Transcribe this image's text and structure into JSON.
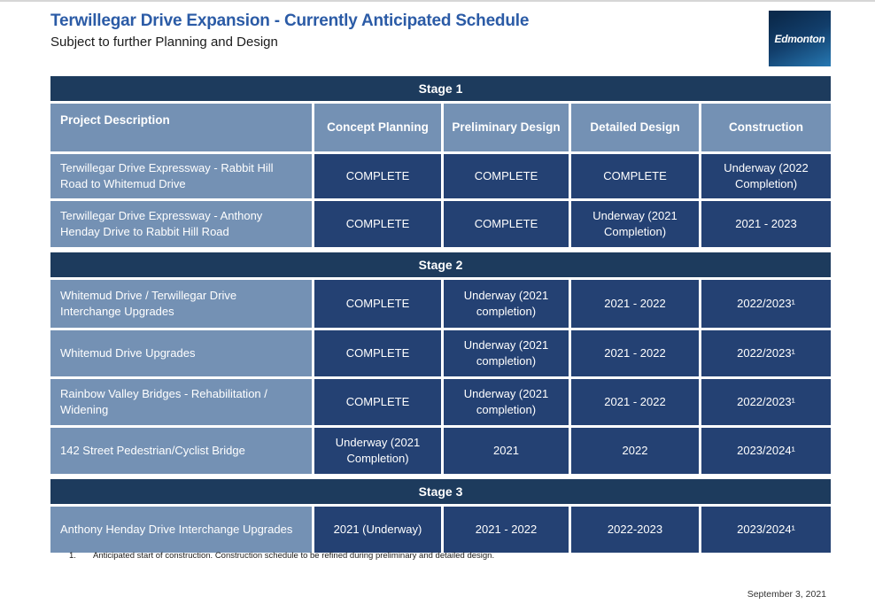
{
  "header": {
    "title": "Terwillegar Drive Expansion - Currently Anticipated Schedule",
    "subtitle": "Subject to further Planning and Design",
    "logo_text": "Edmonton"
  },
  "colors": {
    "title_blue": "#2b5ba6",
    "stage_bar": "#1d3b5d",
    "column_header": "#7491b4",
    "data_cell": "#244173",
    "logo_gradient_start": "#0b2a4c",
    "logo_gradient_end": "#2678b2"
  },
  "table": {
    "columns": [
      "Project Description",
      "Concept Planning",
      "Preliminary Design",
      "Detailed Design",
      "Construction"
    ],
    "stages": [
      {
        "label": "Stage 1",
        "rows": [
          {
            "desc": "Terwillegar Drive Expressway - Rabbit Hill Road to Whitemud Drive",
            "cells": [
              "COMPLETE",
              "COMPLETE",
              "COMPLETE",
              "Underway (2022 Completion)"
            ]
          },
          {
            "desc": "Terwillegar Drive Expressway - Anthony Henday Drive to Rabbit Hill Road",
            "cells": [
              "COMPLETE",
              "COMPLETE",
              "Underway (2021 Completion)",
              "2021 - 2023"
            ]
          }
        ]
      },
      {
        "label": "Stage 2",
        "rows": [
          {
            "desc": "Whitemud Drive / Terwillegar Drive Interchange Upgrades",
            "cells": [
              "COMPLETE",
              "Underway (2021 completion)",
              "2021 - 2022",
              "2022/2023¹"
            ]
          },
          {
            "desc": "Whitemud Drive Upgrades",
            "cells": [
              "COMPLETE",
              "Underway (2021 completion)",
              "2021 - 2022",
              "2022/2023¹"
            ]
          },
          {
            "desc": "Rainbow Valley Bridges - Rehabilitation / Widening",
            "cells": [
              "COMPLETE",
              "Underway (2021 completion)",
              "2021 - 2022",
              "2022/2023¹"
            ]
          },
          {
            "desc": "142 Street Pedestrian/Cyclist Bridge",
            "cells": [
              "Underway (2021 Completion)",
              "2021",
              "2022",
              "2023/2024¹"
            ]
          }
        ]
      },
      {
        "label": "Stage 3",
        "rows": [
          {
            "desc": "Anthony Henday Drive Interchange Upgrades",
            "cells": [
              "2021 (Underway)",
              "2021 - 2022",
              "2022-2023",
              "2023/2024¹"
            ]
          }
        ]
      }
    ]
  },
  "footnote": {
    "number": "1.",
    "text": "Anticipated start of construction. Construction schedule to be refined during preliminary and detailed design."
  },
  "date": "September 3, 2021"
}
